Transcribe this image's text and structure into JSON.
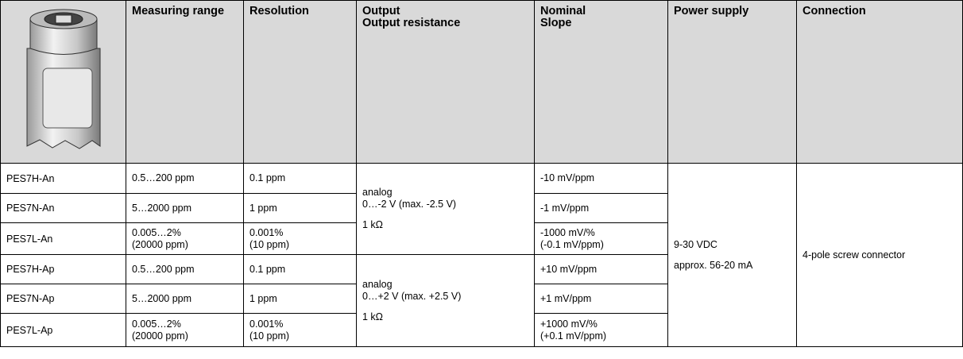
{
  "table": {
    "header": [
      [
        "Measuring range"
      ],
      [
        "Resolution"
      ],
      [
        "Output",
        "Output resistance"
      ],
      [
        "Nominal",
        "Slope"
      ],
      [
        "Power supply"
      ],
      [
        "Connection"
      ]
    ],
    "rows": [
      {
        "model": "PES7H-An",
        "range": [
          "0.5…200 ppm"
        ],
        "resolution": [
          "0.1 ppm"
        ],
        "slope": [
          "-10 mV/ppm"
        ]
      },
      {
        "model": "PES7N-An",
        "range": [
          "5…2000 ppm"
        ],
        "resolution": [
          "1 ppm"
        ],
        "slope": [
          "-1 mV/ppm"
        ]
      },
      {
        "model": "PES7L-An",
        "range": [
          "0.005…2%",
          "(20000 ppm)"
        ],
        "resolution": [
          "0.001%",
          "(10 ppm)"
        ],
        "slope": [
          "-1000 mV/%",
          "(-0.1 mV/ppm)"
        ]
      },
      {
        "model": "PES7H-Ap",
        "range": [
          "0.5…200 ppm"
        ],
        "resolution": [
          "0.1 ppm"
        ],
        "slope": [
          "+10 mV/ppm"
        ]
      },
      {
        "model": "PES7N-Ap",
        "range": [
          "5…2000 ppm"
        ],
        "resolution": [
          "1 ppm"
        ],
        "slope": [
          "+1 mV/ppm"
        ]
      },
      {
        "model": "PES7L-Ap",
        "range": [
          "0.005…2%",
          "(20000 ppm)"
        ],
        "resolution": [
          "0.001%",
          "(10 ppm)"
        ],
        "slope": [
          "+1000 mV/%",
          "(+0.1 mV/ppm)"
        ]
      }
    ],
    "output_groups": [
      [
        "analog",
        "0…-2 V (max. -2.5 V)",
        "1 kΩ"
      ],
      [
        "analog",
        "0…+2 V (max. +2.5 V)",
        "1 kΩ"
      ]
    ],
    "power_supply": [
      "9-30 VDC",
      "approx. 56-20 mA"
    ],
    "connection": "4-pole screw connector"
  }
}
